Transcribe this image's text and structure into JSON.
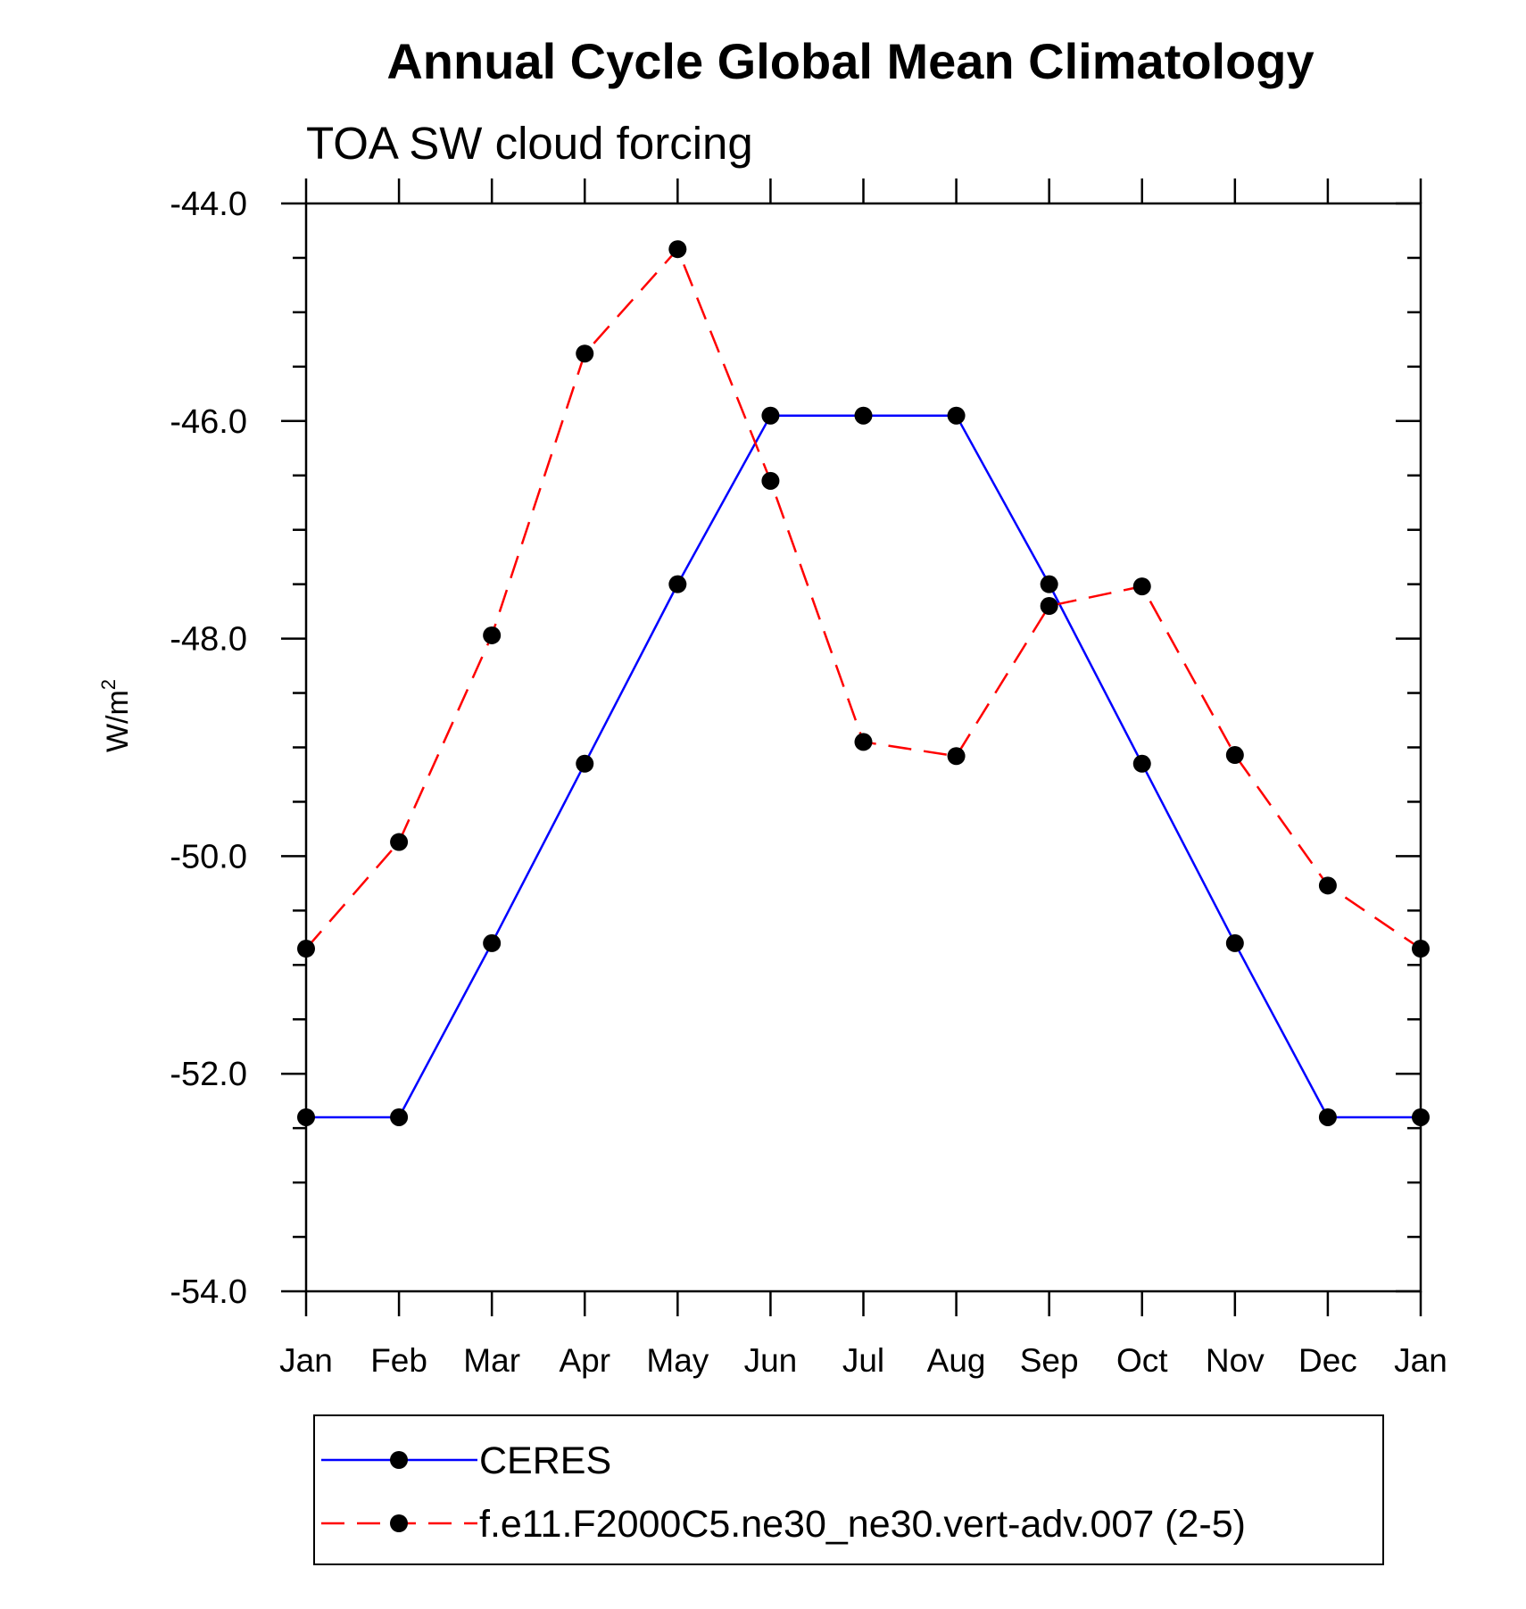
{
  "chart_data": {
    "type": "line",
    "title": "Annual Cycle Global Mean Climatology",
    "subtitle": "TOA SW cloud forcing",
    "ylabel": {
      "main": "W/m",
      "sup": "2"
    },
    "xlabel": "",
    "categories": [
      "Jan",
      "Feb",
      "Mar",
      "Apr",
      "May",
      "Jun",
      "Jul",
      "Aug",
      "Sep",
      "Oct",
      "Nov",
      "Dec",
      "Jan"
    ],
    "ylim": [
      -54.0,
      -44.0
    ],
    "yticks_major": [
      -54.0,
      -52.0,
      -50.0,
      -48.0,
      -46.0,
      -44.0
    ],
    "ytick_labels": [
      "-54.0",
      "-52.0",
      "-50.0",
      "-48.0",
      "-46.0",
      "-44.0"
    ],
    "yminor_step": 0.5,
    "grid": false,
    "legend_position": "bottom",
    "series": [
      {
        "name": "CERES",
        "color": "#0000ff",
        "dash": "solid",
        "values": [
          -52.4,
          -52.4,
          -50.8,
          -49.15,
          -47.5,
          -45.95,
          -45.95,
          -45.95,
          -47.5,
          -49.15,
          -50.8,
          -52.4,
          -52.4
        ]
      },
      {
        "name": "f.e11.F2000C5.ne30_ne30.vert-adv.007 (2-5)",
        "color": "#ff0000",
        "dash": "dashed",
        "values": [
          -50.85,
          -49.87,
          -47.97,
          -45.38,
          -44.42,
          -46.55,
          -48.95,
          -49.08,
          -47.7,
          -47.52,
          -49.07,
          -50.27,
          -50.85
        ]
      }
    ],
    "marker_color": "#000000"
  }
}
